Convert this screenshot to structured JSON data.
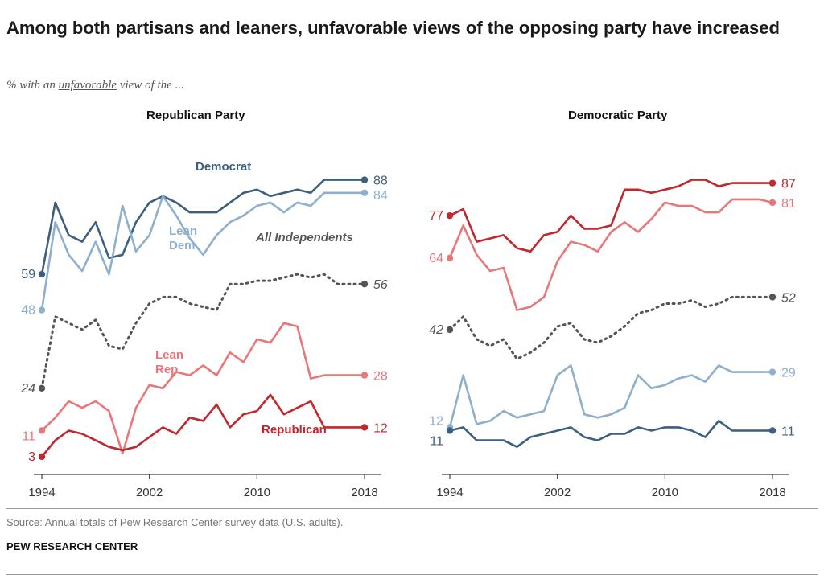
{
  "title": "Among both partisans and leaners, unfavorable views of the opposing party have increased",
  "subtitle_prefix": "% with an ",
  "subtitle_emph": "unfavorable",
  "subtitle_suffix": " view of the ...",
  "source": "Source: Annual totals of Pew Research Center survey data (U.S. adults).",
  "brand": "PEW RESEARCH CENTER",
  "colors": {
    "dem": "#3d5f7f",
    "lean_dem": "#8eb0cc",
    "rep": "#c0282d",
    "lean_rep": "#e8777a",
    "ind": "#555555",
    "axis": "#444444"
  },
  "chart_data": [
    {
      "type": "line",
      "title": "Republican Party",
      "x": [
        1994,
        1995,
        1996,
        1997,
        1998,
        1999,
        2000,
        2001,
        2002,
        2003,
        2004,
        2005,
        2006,
        2007,
        2008,
        2009,
        2010,
        2011,
        2012,
        2013,
        2014,
        2015,
        2016,
        2017,
        2018
      ],
      "xticks": [
        "1994",
        "2002",
        "2010",
        "2018"
      ],
      "ylim": [
        0,
        100
      ],
      "series": [
        {
          "name": "Democrat",
          "label": "Democrat",
          "color_key": "dem",
          "dashed": false,
          "start_label": "59",
          "end_label": "88",
          "values": [
            59,
            81,
            71,
            69,
            75,
            64,
            65,
            75,
            81,
            83,
            81,
            78,
            78,
            78,
            81,
            84,
            85,
            83,
            84,
            85,
            84,
            88,
            88,
            88,
            88
          ]
        },
        {
          "name": "Lean Dem",
          "label": "Lean Dem",
          "color_key": "lean_dem",
          "dashed": false,
          "start_label": "48",
          "end_label": "84",
          "values": [
            48,
            75,
            65,
            60,
            69,
            59,
            80,
            66,
            71,
            83,
            77,
            70,
            65,
            71,
            75,
            77,
            80,
            81,
            78,
            81,
            80,
            84,
            84,
            84,
            84
          ]
        },
        {
          "name": "All Independents",
          "label": "All Independents",
          "color_key": "ind",
          "dashed": true,
          "start_label": "24",
          "end_label": "56",
          "values": [
            24,
            46,
            44,
            42,
            45,
            37,
            36,
            44,
            50,
            52,
            52,
            50,
            49,
            48,
            56,
            56,
            57,
            57,
            58,
            59,
            58,
            59,
            56,
            56,
            56
          ]
        },
        {
          "name": "Lean Rep",
          "label": "Lean Rep",
          "color_key": "lean_rep",
          "dashed": false,
          "start_label": "11",
          "end_label": "28",
          "values": [
            11,
            15,
            20,
            18,
            20,
            17,
            4,
            18,
            25,
            24,
            29,
            28,
            31,
            28,
            35,
            32,
            39,
            38,
            44,
            43,
            27,
            28,
            28,
            28,
            28
          ]
        },
        {
          "name": "Republican",
          "label": "Republican",
          "color_key": "rep",
          "dashed": false,
          "start_label": "3",
          "end_label": "12",
          "values": [
            3,
            8,
            11,
            10,
            8,
            6,
            5,
            6,
            9,
            12,
            10,
            15,
            14,
            19,
            12,
            16,
            17,
            22,
            16,
            18,
            20,
            12,
            12,
            12,
            12
          ]
        }
      ]
    },
    {
      "type": "line",
      "title": "Democratic Party",
      "x": [
        1994,
        1995,
        1996,
        1997,
        1998,
        1999,
        2000,
        2001,
        2002,
        2003,
        2004,
        2005,
        2006,
        2007,
        2008,
        2009,
        2010,
        2011,
        2012,
        2013,
        2014,
        2015,
        2016,
        2017,
        2018
      ],
      "xticks": [
        "1994",
        "2002",
        "2010",
        "2018"
      ],
      "ylim": [
        0,
        100
      ],
      "series": [
        {
          "name": "Republican",
          "label": "",
          "color_key": "rep",
          "dashed": false,
          "start_label": "77",
          "end_label": "87",
          "values": [
            77,
            79,
            69,
            70,
            71,
            67,
            66,
            71,
            72,
            77,
            73,
            73,
            74,
            85,
            85,
            84,
            85,
            86,
            88,
            88,
            86,
            87,
            87,
            87,
            87
          ]
        },
        {
          "name": "Lean Rep",
          "label": "",
          "color_key": "lean_rep",
          "dashed": false,
          "start_label": "64",
          "end_label": "81",
          "values": [
            64,
            74,
            65,
            60,
            61,
            48,
            49,
            52,
            63,
            69,
            68,
            66,
            72,
            75,
            72,
            76,
            81,
            80,
            80,
            78,
            78,
            82,
            82,
            82,
            81
          ]
        },
        {
          "name": "All Independents",
          "label": "",
          "color_key": "ind",
          "dashed": true,
          "start_label": "42",
          "end_label": "52",
          "values": [
            42,
            46,
            39,
            37,
            39,
            33,
            35,
            38,
            43,
            44,
            39,
            38,
            40,
            43,
            47,
            48,
            50,
            50,
            51,
            49,
            50,
            52,
            52,
            52,
            52
          ]
        },
        {
          "name": "Lean Dem",
          "label": "",
          "color_key": "lean_dem",
          "dashed": false,
          "start_label": "12",
          "end_label": "29",
          "values": [
            12,
            28,
            13,
            14,
            17,
            15,
            16,
            17,
            28,
            31,
            16,
            15,
            16,
            18,
            28,
            24,
            25,
            27,
            28,
            26,
            31,
            29,
            29,
            29,
            29
          ]
        },
        {
          "name": "Democrat",
          "label": "",
          "color_key": "dem",
          "dashed": false,
          "start_label": "11",
          "end_label": "11",
          "values": [
            11,
            12,
            8,
            8,
            8,
            6,
            9,
            10,
            11,
            12,
            9,
            8,
            10,
            10,
            12,
            11,
            12,
            12,
            11,
            9,
            14,
            11,
            11,
            11,
            11
          ]
        }
      ]
    }
  ]
}
